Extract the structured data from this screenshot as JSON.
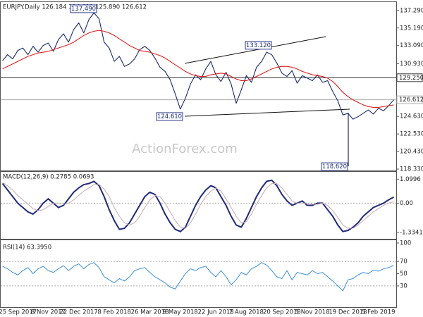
{
  "chart_data": [
    {
      "type": "line",
      "title": "EURJPY.Daily 126.184 126.631 125.890 126.612",
      "watermark": "ActionForex.com",
      "ylim": [
        118.25,
        138.2
      ],
      "yticks": [
        {
          "value": 137.29,
          "label": "137.290"
        },
        {
          "value": 135.19,
          "label": "135.190"
        },
        {
          "value": 133.09,
          "label": "133.090"
        },
        {
          "value": 130.93,
          "label": "130.930"
        },
        {
          "value": 124.63,
          "label": "124.630"
        },
        {
          "value": 122.53,
          "label": "122.530"
        },
        {
          "value": 120.43,
          "label": "120.430"
        },
        {
          "value": 118.33,
          "label": "118.330"
        }
      ],
      "hlines": [
        {
          "value": 129.25,
          "label": "129.250",
          "color": "#333333"
        },
        {
          "value": 126.612,
          "label": "126.612",
          "color": "#aaaaaa"
        }
      ],
      "annotations": [
        {
          "value": 137.49,
          "label": "137.490"
        },
        {
          "value": 133.12,
          "label": "133.120"
        },
        {
          "value": 124.61,
          "label": "124.610"
        },
        {
          "value": 118.62,
          "label": "118.620"
        }
      ],
      "series": [
        {
          "color": "#1a2a6c",
          "values": [
            131.3,
            132.0,
            131.5,
            132.5,
            132.8,
            132.0,
            133.0,
            132.3,
            133.1,
            133.4,
            132.4,
            133.8,
            134.5,
            133.5,
            135.0,
            135.8,
            134.6,
            136.2,
            137.0,
            136.3,
            133.5,
            132.8,
            131.2,
            131.8,
            130.6,
            130.9,
            131.5,
            132.6,
            133.0,
            132.5,
            131.6,
            130.5,
            130.0,
            129.0,
            127.3,
            125.5,
            126.8,
            128.5,
            129.6,
            129.0,
            130.3,
            131.2,
            129.6,
            128.8,
            129.9,
            128.5,
            126.2,
            127.8,
            129.5,
            128.7,
            130.5,
            131.2,
            132.3,
            132.0,
            131.0,
            129.8,
            129.4,
            130.1,
            128.6,
            129.5,
            129.2,
            128.9,
            129.6,
            128.7,
            128.9,
            127.6,
            126.5,
            124.8,
            125.0,
            124.3,
            124.6,
            125.0,
            125.4,
            124.9,
            125.6,
            125.3,
            125.9,
            126.6
          ]
        },
        {
          "color": "#e02020",
          "values": [
            130.3,
            130.6,
            130.9,
            131.2,
            131.5,
            131.8,
            132.0,
            132.2,
            132.3,
            132.4,
            132.6,
            132.8,
            133.0,
            133.2,
            133.5,
            133.9,
            134.3,
            134.6,
            134.8,
            134.9,
            134.8,
            134.6,
            134.3,
            133.9,
            133.5,
            133.1,
            132.8,
            132.5,
            132.4,
            132.3,
            132.1,
            131.9,
            131.6,
            131.2,
            130.8,
            130.4,
            130.0,
            129.7,
            129.5,
            129.4,
            129.4,
            129.6,
            129.7,
            129.8,
            129.7,
            129.4,
            129.1,
            128.9,
            128.9,
            129.1,
            129.4,
            129.7,
            130.0,
            130.3,
            130.5,
            130.6,
            130.6,
            130.5,
            130.3,
            130.0,
            129.8,
            129.6,
            129.5,
            129.4,
            129.2,
            128.8,
            128.2,
            127.5,
            127.0,
            126.6,
            126.3,
            126.0,
            125.8,
            125.7,
            125.7,
            125.8,
            125.9,
            126.0
          ]
        }
      ]
    },
    {
      "type": "line",
      "title": "MACD(12,26,9) 0.2785 0.0693",
      "ylim": [
        -1.6,
        1.4
      ],
      "yticks": [
        1.0996,
        {
          "value": 0,
          "label": "0.00"
        },
        -1.3341
      ],
      "levels": [
        0
      ],
      "series": [
        {
          "color": "#1f2a7a",
          "width": 2,
          "values": [
            0.9,
            0.6,
            0.3,
            0.0,
            -0.2,
            -0.4,
            -0.5,
            -0.3,
            0.0,
            0.2,
            0.0,
            -0.2,
            -0.1,
            0.2,
            0.5,
            0.7,
            0.85,
            0.9,
            1.0,
            0.8,
            0.3,
            -0.3,
            -0.8,
            -1.2,
            -1.15,
            -0.9,
            -0.5,
            -0.1,
            0.3,
            0.5,
            0.4,
            0.0,
            -0.5,
            -0.9,
            -1.2,
            -1.3,
            -1.1,
            -0.6,
            -0.1,
            0.3,
            0.6,
            0.8,
            0.7,
            0.3,
            -0.1,
            -0.6,
            -1.0,
            -1.1,
            -0.7,
            -0.2,
            0.3,
            0.7,
            1.0,
            1.05,
            0.8,
            0.4,
            0.1,
            -0.1,
            0.0,
            0.1,
            -0.1,
            -0.1,
            0.0,
            0.0,
            -0.3,
            -0.6,
            -1.0,
            -1.3,
            -1.25,
            -1.1,
            -0.9,
            -0.6,
            -0.4,
            -0.2,
            -0.1,
            0.0,
            0.15,
            0.2785
          ]
        },
        {
          "color": "#c9a9b0",
          "width": 1,
          "values": [
            0.95,
            0.8,
            0.6,
            0.35,
            0.15,
            -0.05,
            -0.25,
            -0.35,
            -0.3,
            -0.15,
            0.0,
            0.0,
            -0.05,
            0.0,
            0.15,
            0.35,
            0.55,
            0.7,
            0.85,
            0.85,
            0.65,
            0.3,
            -0.2,
            -0.6,
            -0.9,
            -1.0,
            -0.9,
            -0.6,
            -0.2,
            0.15,
            0.35,
            0.3,
            0.0,
            -0.4,
            -0.8,
            -1.1,
            -1.15,
            -0.9,
            -0.5,
            -0.05,
            0.3,
            0.55,
            0.7,
            0.55,
            0.2,
            -0.2,
            -0.6,
            -0.9,
            -0.85,
            -0.5,
            -0.05,
            0.35,
            0.7,
            0.9,
            0.9,
            0.7,
            0.4,
            0.1,
            0.0,
            0.0,
            0.0,
            -0.05,
            -0.05,
            0.0,
            -0.1,
            -0.35,
            -0.65,
            -1.0,
            -1.15,
            -1.15,
            -1.0,
            -0.8,
            -0.6,
            -0.4,
            -0.25,
            -0.1,
            0.0,
            0.0693
          ]
        }
      ]
    },
    {
      "type": "line",
      "title": "RSI(14) 63.3950",
      "ylim": [
        0,
        100
      ],
      "yticks": [
        100,
        70,
        50,
        30
      ],
      "levels": [
        70,
        30
      ],
      "categories": [
        null,
        null,
        null,
        "25 Sep 2017",
        null,
        null,
        null,
        null,
        null,
        "8 Nov 2017",
        null,
        null,
        null,
        null,
        null,
        "22 Dec 2017",
        null,
        null,
        null,
        null,
        null,
        null,
        "8 Feb 2018",
        null,
        null,
        null,
        null,
        null,
        null,
        "26 Mar 2018",
        null,
        null,
        null,
        null,
        null,
        "9 May 2018",
        null,
        null,
        null,
        null,
        null,
        null,
        "22 Jun 2018",
        null,
        null,
        null,
        null,
        null,
        "7 Aug 2018",
        null,
        null,
        null,
        null,
        null,
        null,
        "20 Sep 2018",
        null,
        null,
        null,
        null,
        null,
        "5 Nov 2018",
        null,
        null,
        null,
        null,
        null,
        null,
        "19 Dec 2018",
        null,
        null,
        null,
        null,
        null,
        "5 Feb 2019",
        null,
        null,
        null
      ],
      "series": [
        {
          "color": "#3b8fd6",
          "width": 1,
          "values": [
            62,
            58,
            52,
            48,
            55,
            60,
            50,
            58,
            62,
            55,
            52,
            58,
            63,
            55,
            62,
            66,
            58,
            65,
            68,
            60,
            45,
            40,
            35,
            42,
            38,
            45,
            55,
            58,
            60,
            52,
            45,
            40,
            35,
            28,
            25,
            38,
            50,
            58,
            55,
            60,
            62,
            52,
            45,
            55,
            45,
            32,
            40,
            52,
            48,
            58,
            62,
            68,
            64,
            55,
            45,
            42,
            55,
            40,
            52,
            50,
            48,
            55,
            50,
            52,
            45,
            38,
            30,
            22,
            40,
            42,
            48,
            52,
            50,
            56,
            54,
            58,
            60,
            63.395
          ]
        }
      ]
    }
  ]
}
